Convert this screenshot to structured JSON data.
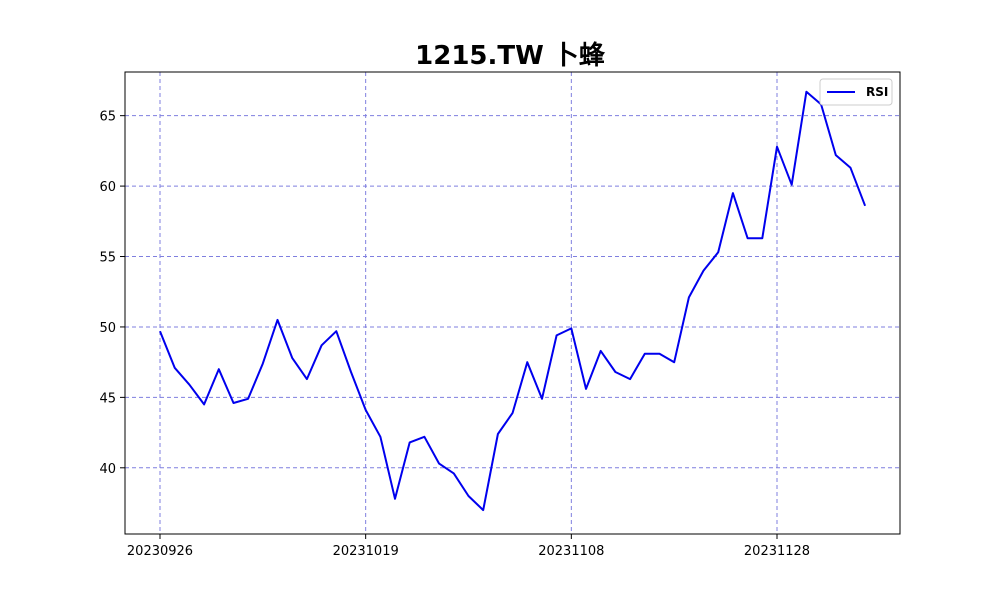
{
  "chart_data": {
    "type": "line",
    "title": "1215.TW 卜蜂",
    "xlabel": "",
    "ylabel": "",
    "x_tick_labels": [
      "20230926",
      "20231019",
      "20231108",
      "20231128"
    ],
    "x_tick_indices": [
      0,
      14,
      28,
      42
    ],
    "y_ticks": [
      40,
      45,
      50,
      55,
      60,
      65
    ],
    "ylim": [
      35.3,
      68.1
    ],
    "grid": true,
    "legend_position": "top-right",
    "colors": {
      "line": "#0000ee",
      "grid": "#7f7fdf",
      "axes": "#000000"
    },
    "series": [
      {
        "name": "RSI",
        "values": [
          49.7,
          47.1,
          45.9,
          44.5,
          47.0,
          44.6,
          44.9,
          47.4,
          50.5,
          47.8,
          46.3,
          48.7,
          49.7,
          46.8,
          44.1,
          42.2,
          37.8,
          41.8,
          42.2,
          40.3,
          39.6,
          38.0,
          37.0,
          42.4,
          43.9,
          47.5,
          44.9,
          49.4,
          49.9,
          45.6,
          48.3,
          46.8,
          46.3,
          48.1,
          48.1,
          47.5,
          52.1,
          54.0,
          55.3,
          59.5,
          56.3,
          56.3,
          62.8,
          60.1,
          66.7,
          65.8,
          62.2,
          61.3,
          58.6
        ]
      }
    ]
  }
}
